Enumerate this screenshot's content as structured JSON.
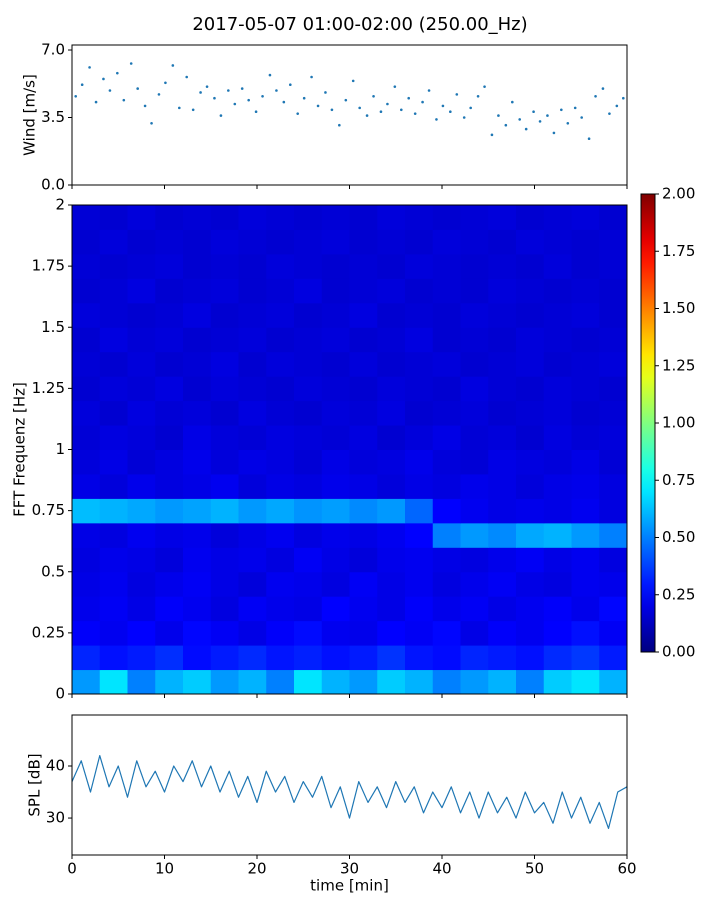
{
  "title": "2017-05-07 01:00-02:00 (250.00_Hz)",
  "chart_data": [
    {
      "type": "scatter",
      "ylabel": "Wind [m/s]",
      "color": "#1f77b4",
      "xlim": [
        0,
        60
      ],
      "xticks": [
        0,
        10,
        20,
        30,
        40,
        50,
        60
      ],
      "ylim": [
        0,
        7.26
      ],
      "yticks": [
        {
          "value": 0,
          "label": "0.0"
        },
        {
          "value": 3.5,
          "label": "3.5"
        },
        {
          "value": 7,
          "label": "7.0"
        }
      ],
      "x": [
        0.4,
        1.1,
        1.9,
        2.6,
        3.4,
        4.1,
        4.9,
        5.6,
        6.4,
        7.1,
        7.9,
        8.6,
        9.4,
        10.1,
        10.9,
        11.6,
        12.4,
        13.1,
        13.9,
        14.6,
        15.4,
        16.1,
        16.9,
        17.6,
        18.4,
        19.1,
        19.9,
        20.6,
        21.4,
        22.1,
        22.9,
        23.6,
        24.4,
        25.1,
        25.9,
        26.6,
        27.4,
        28.1,
        28.9,
        29.6,
        30.4,
        31.1,
        31.9,
        32.6,
        33.4,
        34.1,
        34.9,
        35.6,
        36.4,
        37.1,
        37.9,
        38.6,
        39.4,
        40.1,
        40.9,
        41.6,
        42.4,
        43.1,
        43.9,
        44.6,
        45.4,
        46.1,
        46.9,
        47.6,
        48.4,
        49.1,
        49.9,
        50.6,
        51.4,
        52.1,
        52.9,
        53.6,
        54.4,
        55.1,
        55.9,
        56.6,
        57.4,
        58.1,
        58.9,
        59.6
      ],
      "values": [
        4.6,
        5.2,
        6.1,
        4.3,
        5.5,
        4.9,
        5.8,
        4.4,
        6.3,
        5.0,
        4.1,
        3.2,
        4.7,
        5.3,
        6.2,
        4.0,
        5.6,
        3.9,
        4.8,
        5.1,
        4.5,
        3.6,
        4.9,
        4.2,
        5.0,
        4.4,
        3.8,
        4.6,
        5.7,
        4.9,
        4.3,
        5.2,
        3.7,
        4.5,
        5.6,
        4.1,
        4.8,
        3.9,
        3.1,
        4.4,
        5.4,
        4.0,
        3.6,
        4.6,
        3.8,
        4.2,
        5.1,
        3.9,
        4.5,
        3.7,
        4.3,
        4.9,
        3.4,
        4.1,
        3.8,
        4.7,
        3.5,
        4.0,
        4.6,
        5.1,
        2.6,
        3.6,
        3.1,
        4.3,
        3.4,
        2.9,
        3.8,
        3.3,
        3.6,
        2.7,
        3.9,
        3.2,
        4.0,
        3.5,
        2.4,
        4.6,
        5.0,
        3.7,
        4.1,
        4.5
      ]
    },
    {
      "type": "heatmap",
      "ylabel": "FFT Frequenz [Hz]",
      "xlim": [
        0,
        60
      ],
      "xticks": [
        0,
        10,
        20,
        30,
        40,
        50,
        60
      ],
      "ylim": [
        0,
        2
      ],
      "yticks": [
        0,
        0.25,
        0.5,
        0.75,
        1,
        1.25,
        1.5,
        1.75,
        2
      ],
      "clim": [
        0,
        2
      ],
      "cticks": [
        {
          "value": 0,
          "label": "0.00"
        },
        {
          "value": 0.25,
          "label": "0.25"
        },
        {
          "value": 0.5,
          "label": "0.50"
        },
        {
          "value": 0.75,
          "label": "0.75"
        },
        {
          "value": 1,
          "label": "1.00"
        },
        {
          "value": 1.25,
          "label": "1.25"
        },
        {
          "value": 1.5,
          "label": "1.50"
        },
        {
          "value": 1.75,
          "label": "1.75"
        },
        {
          "value": 2,
          "label": "2.00"
        }
      ],
      "z": [
        [
          0.55,
          0.7,
          0.5,
          0.6,
          0.65,
          0.55,
          0.6,
          0.5,
          0.7,
          0.6,
          0.55,
          0.65,
          0.6,
          0.5,
          0.55,
          0.6,
          0.5,
          0.65,
          0.7,
          0.6
        ],
        [
          0.32,
          0.28,
          0.3,
          0.34,
          0.27,
          0.3,
          0.33,
          0.29,
          0.31,
          0.28,
          0.3,
          0.35,
          0.29,
          0.27,
          0.32,
          0.3,
          0.28,
          0.33,
          0.36,
          0.3
        ],
        [
          0.24,
          0.22,
          0.25,
          0.21,
          0.26,
          0.23,
          0.2,
          0.24,
          0.27,
          0.22,
          0.21,
          0.25,
          0.23,
          0.26,
          0.2,
          0.24,
          0.22,
          0.25,
          0.28,
          0.23
        ],
        [
          0.21,
          0.23,
          0.2,
          0.24,
          0.22,
          0.19,
          0.23,
          0.21,
          0.2,
          0.25,
          0.22,
          0.2,
          0.24,
          0.21,
          0.23,
          0.2,
          0.22,
          0.24,
          0.21,
          0.26
        ],
        [
          0.2,
          0.22,
          0.19,
          0.21,
          0.23,
          0.2,
          0.18,
          0.22,
          0.21,
          0.19,
          0.23,
          0.2,
          0.22,
          0.19,
          0.21,
          0.23,
          0.2,
          0.19,
          0.22,
          0.21
        ],
        [
          0.19,
          0.21,
          0.2,
          0.18,
          0.22,
          0.2,
          0.21,
          0.19,
          0.23,
          0.2,
          0.18,
          0.21,
          0.22,
          0.2,
          0.19,
          0.21,
          0.23,
          0.2,
          0.22,
          0.19
        ],
        [
          0.2,
          0.19,
          0.22,
          0.2,
          0.21,
          0.18,
          0.2,
          0.22,
          0.19,
          0.21,
          0.2,
          0.22,
          0.25,
          0.5,
          0.55,
          0.52,
          0.58,
          0.6,
          0.55,
          0.5
        ],
        [
          0.62,
          0.6,
          0.58,
          0.55,
          0.57,
          0.6,
          0.55,
          0.58,
          0.54,
          0.56,
          0.52,
          0.55,
          0.45,
          0.25,
          0.22,
          0.2,
          0.21,
          0.2,
          0.22,
          0.19
        ],
        [
          0.2,
          0.18,
          0.21,
          0.19,
          0.2,
          0.22,
          0.18,
          0.2,
          0.19,
          0.21,
          0.2,
          0.18,
          0.2,
          0.19,
          0.21,
          0.2,
          0.18,
          0.2,
          0.21,
          0.19
        ],
        [
          0.18,
          0.2,
          0.17,
          0.19,
          0.21,
          0.18,
          0.2,
          0.19,
          0.17,
          0.2,
          0.18,
          0.19,
          0.21,
          0.18,
          0.17,
          0.2,
          0.19,
          0.18,
          0.2,
          0.17
        ],
        [
          0.17,
          0.19,
          0.18,
          0.16,
          0.2,
          0.18,
          0.17,
          0.19,
          0.18,
          0.17,
          0.19,
          0.16,
          0.18,
          0.2,
          0.17,
          0.18,
          0.16,
          0.19,
          0.17,
          0.18
        ],
        [
          0.18,
          0.16,
          0.19,
          0.17,
          0.18,
          0.16,
          0.19,
          0.17,
          0.16,
          0.18,
          0.17,
          0.19,
          0.16,
          0.17,
          0.18,
          0.16,
          0.17,
          0.18,
          0.16,
          0.17
        ],
        [
          0.16,
          0.18,
          0.17,
          0.19,
          0.16,
          0.18,
          0.17,
          0.16,
          0.18,
          0.17,
          0.16,
          0.18,
          0.17,
          0.16,
          0.19,
          0.17,
          0.16,
          0.18,
          0.17,
          0.16
        ],
        [
          0.17,
          0.16,
          0.18,
          0.16,
          0.17,
          0.19,
          0.16,
          0.18,
          0.17,
          0.16,
          0.18,
          0.16,
          0.17,
          0.18,
          0.16,
          0.17,
          0.18,
          0.16,
          0.17,
          0.18
        ],
        [
          0.16,
          0.19,
          0.17,
          0.18,
          0.16,
          0.17,
          0.18,
          0.16,
          0.17,
          0.18,
          0.16,
          0.17,
          0.19,
          0.16,
          0.17,
          0.16,
          0.18,
          0.17,
          0.16,
          0.17
        ],
        [
          0.18,
          0.17,
          0.16,
          0.17,
          0.19,
          0.16,
          0.17,
          0.18,
          0.16,
          0.17,
          0.19,
          0.16,
          0.17,
          0.16,
          0.18,
          0.17,
          0.16,
          0.17,
          0.18,
          0.16
        ],
        [
          0.16,
          0.17,
          0.19,
          0.16,
          0.17,
          0.18,
          0.16,
          0.17,
          0.19,
          0.16,
          0.17,
          0.18,
          0.16,
          0.17,
          0.16,
          0.18,
          0.17,
          0.16,
          0.17,
          0.16
        ],
        [
          0.17,
          0.16,
          0.17,
          0.18,
          0.16,
          0.17,
          0.16,
          0.18,
          0.17,
          0.16,
          0.17,
          0.16,
          0.18,
          0.17,
          0.16,
          0.17,
          0.16,
          0.18,
          0.16,
          0.17
        ],
        [
          0.16,
          0.18,
          0.16,
          0.17,
          0.16,
          0.18,
          0.17,
          0.16,
          0.17,
          0.18,
          0.16,
          0.17,
          0.16,
          0.18,
          0.17,
          0.16,
          0.18,
          0.17,
          0.16,
          0.17
        ],
        [
          0.17,
          0.16,
          0.18,
          0.16,
          0.17,
          0.16,
          0.18,
          0.17,
          0.16,
          0.17,
          0.16,
          0.18,
          0.17,
          0.16,
          0.17,
          0.18,
          0.16,
          0.17,
          0.18,
          0.16
        ]
      ]
    },
    {
      "type": "line",
      "ylabel": "SPL [dB]",
      "xlabel": "time [min]",
      "color": "#1f77b4",
      "xlim": [
        0,
        60
      ],
      "xticks": [
        0,
        10,
        20,
        30,
        40,
        50,
        60
      ],
      "ylim": [
        22.9,
        49.8
      ],
      "yticks": [
        30,
        40
      ],
      "x": [
        0,
        1,
        2,
        3,
        4,
        5,
        6,
        7,
        8,
        9,
        10,
        11,
        12,
        13,
        14,
        15,
        16,
        17,
        18,
        19,
        20,
        21,
        22,
        23,
        24,
        25,
        26,
        27,
        28,
        29,
        30,
        31,
        32,
        33,
        34,
        35,
        36,
        37,
        38,
        39,
        40,
        41,
        42,
        43,
        44,
        45,
        46,
        47,
        48,
        49,
        50,
        51,
        52,
        53,
        54,
        55,
        56,
        57,
        58,
        59,
        60
      ],
      "values": [
        37,
        41,
        35,
        42,
        36,
        40,
        34,
        41,
        36,
        39,
        35,
        40,
        37,
        41,
        36,
        40,
        35,
        39,
        34,
        38,
        33,
        39,
        35,
        38,
        33,
        37,
        34,
        38,
        32,
        36,
        30,
        37,
        33,
        36,
        32,
        37,
        33,
        36,
        31,
        35,
        32,
        36,
        31,
        35,
        30,
        35,
        31,
        34,
        30,
        35,
        31,
        33,
        29,
        35,
        30,
        34,
        29,
        33,
        28,
        35,
        36
      ]
    }
  ]
}
